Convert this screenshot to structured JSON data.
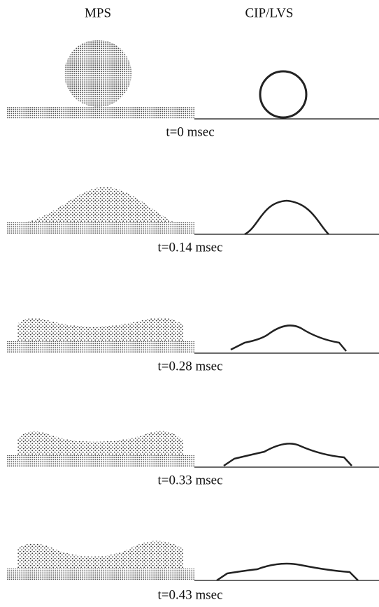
{
  "header": {
    "left": "MPS",
    "right": "CIP/LVS"
  },
  "frames": [
    {
      "label": "t=0 msec"
    },
    {
      "label": "t=0.14 msec"
    },
    {
      "label": "t=0.28 msec"
    },
    {
      "label": "t=0.33 msec"
    },
    {
      "label": "t=0.43 msec"
    }
  ]
}
